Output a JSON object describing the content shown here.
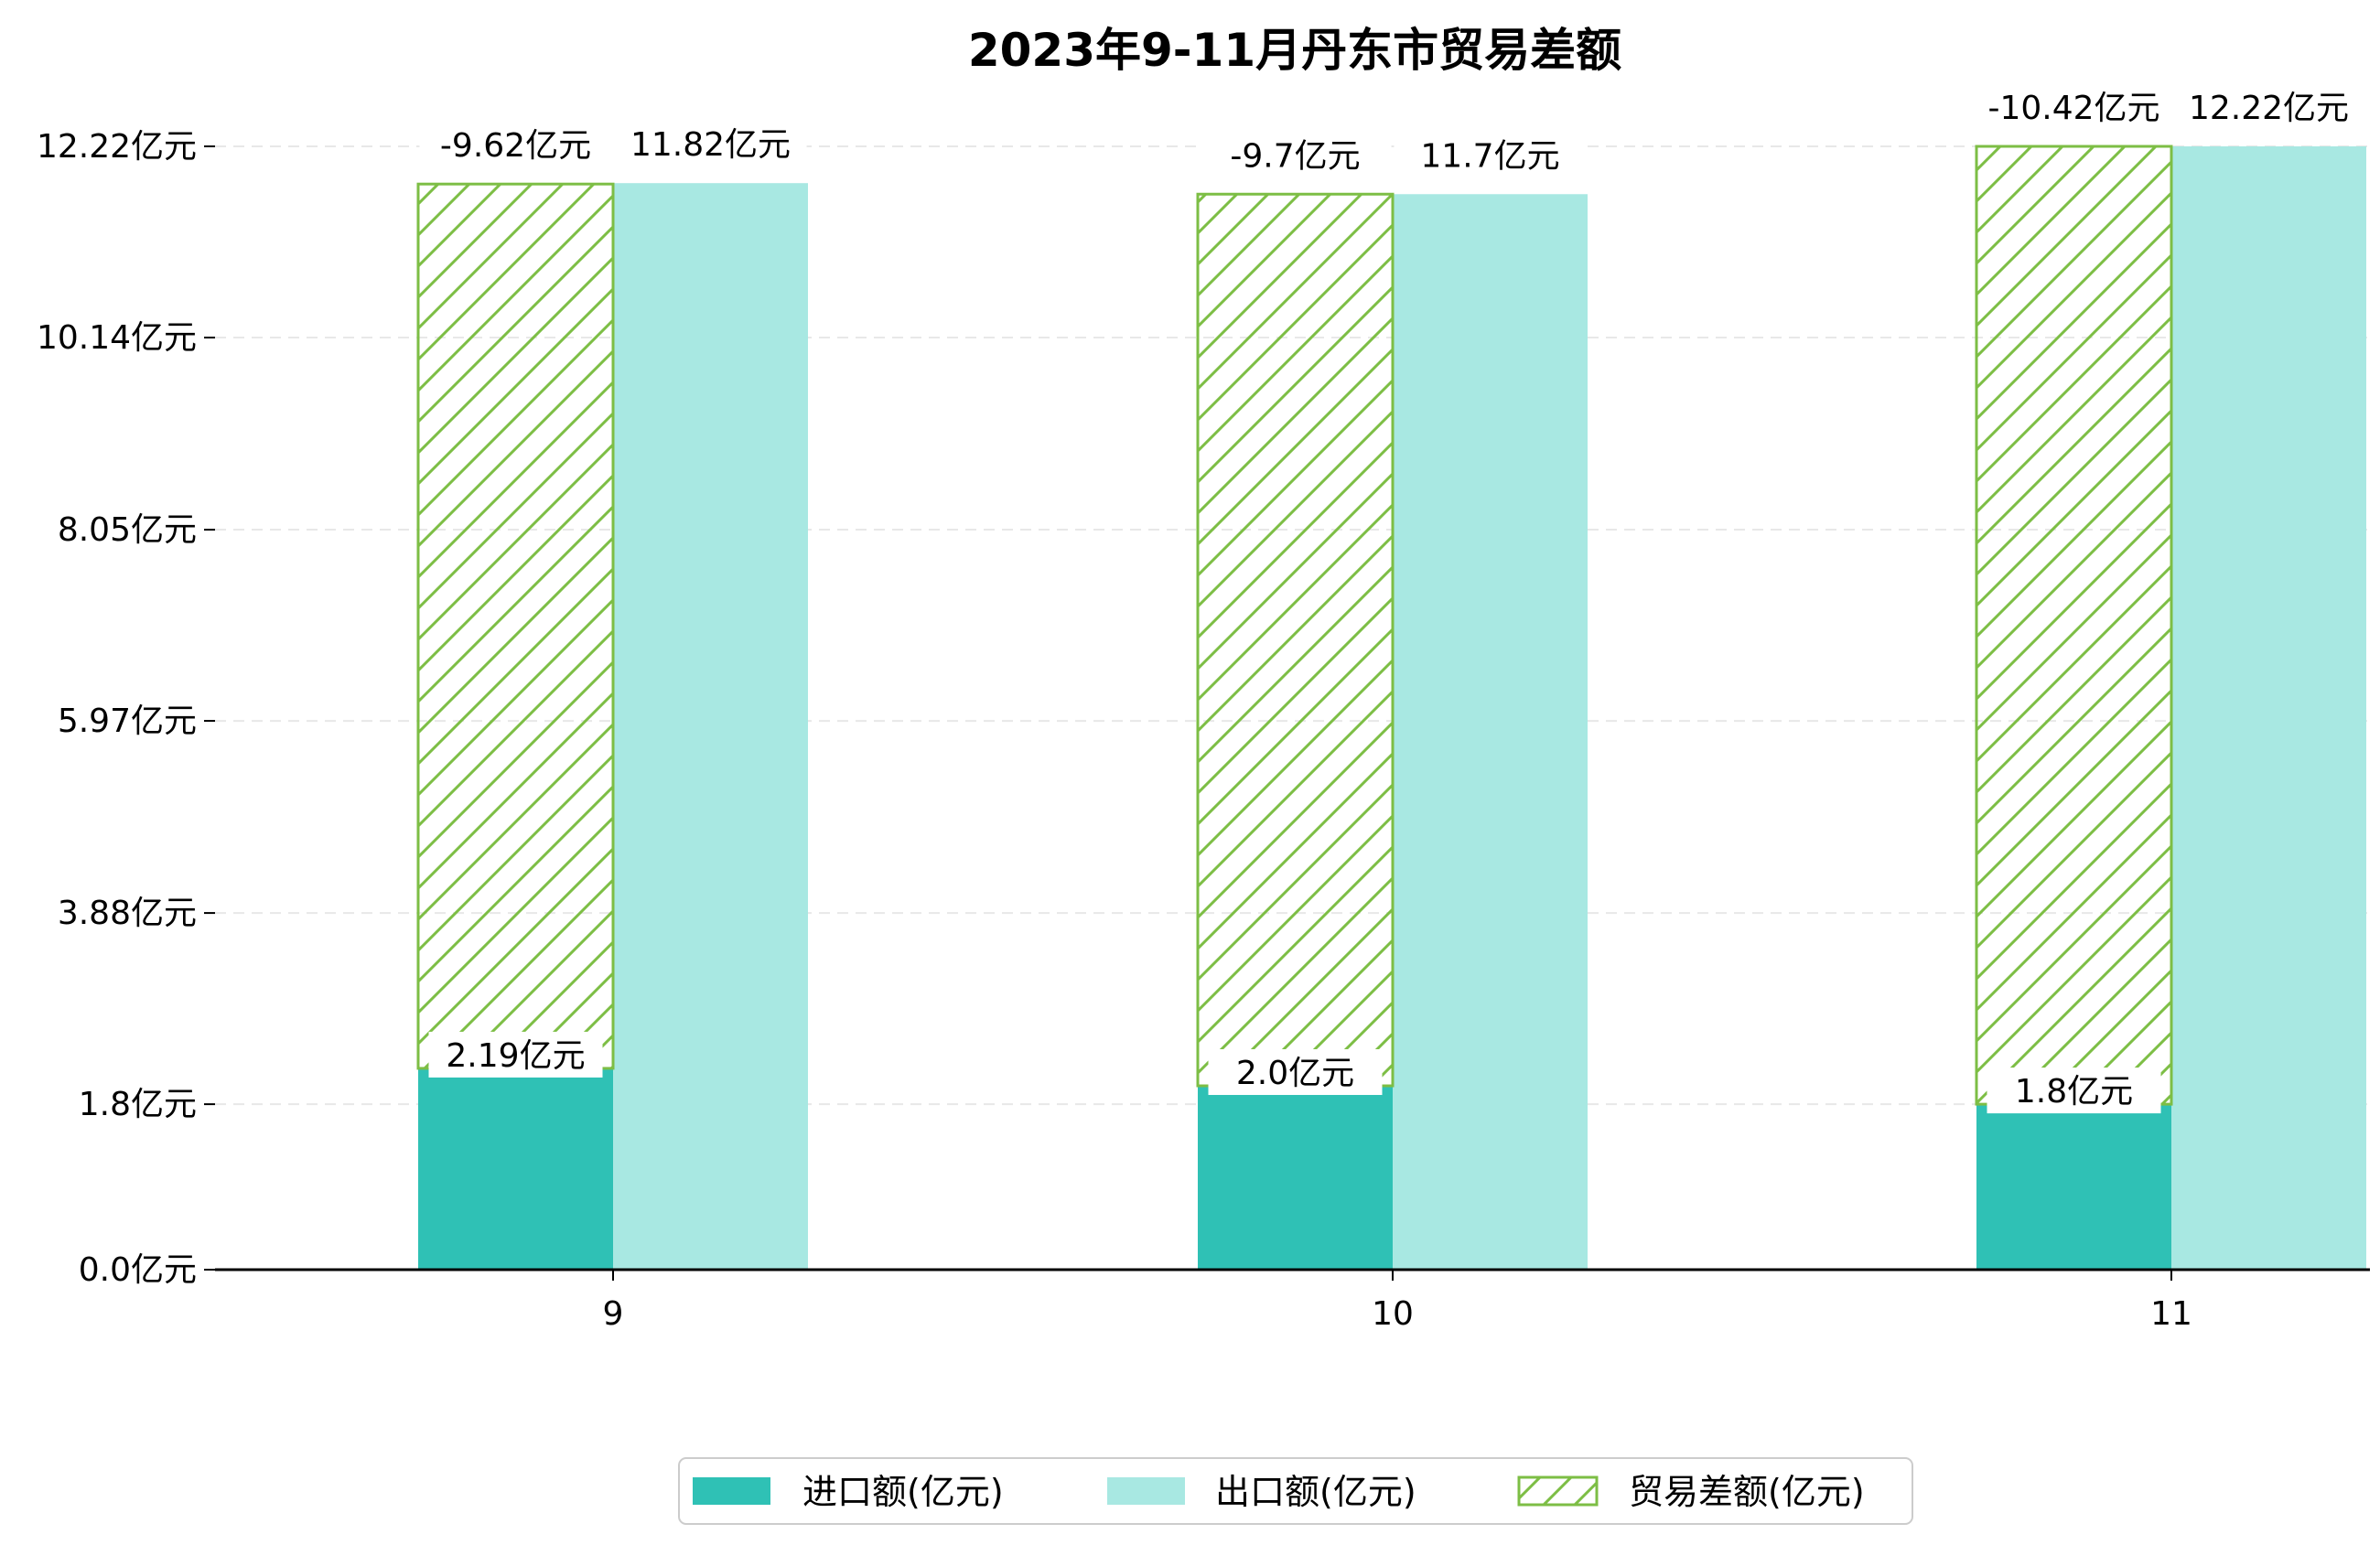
{
  "chart_data": {
    "type": "bar",
    "title": "2023年9-11月丹东市贸易差额",
    "xlabel": "",
    "ylabel": "",
    "categories": [
      "9",
      "10",
      "11"
    ],
    "series": [
      {
        "name": "进口额(亿元)",
        "values": [
          2.19,
          2.0,
          1.8
        ],
        "labels": [
          "2.19亿元",
          "2.0亿元",
          "1.8亿元"
        ],
        "color": "#2fc1b5"
      },
      {
        "name": "出口额(亿元)",
        "values": [
          11.82,
          11.7,
          12.22
        ],
        "labels": [
          "11.82亿元",
          "11.7亿元",
          "12.22亿元"
        ],
        "color": "#a8e8e2"
      },
      {
        "name": "贸易差额(亿元)",
        "values": [
          -9.62,
          -9.7,
          -10.42
        ],
        "labels": [
          "-9.62亿元",
          "-9.7亿元",
          "-10.42亿元"
        ],
        "color": "#7dbe45",
        "style": "hatched"
      }
    ],
    "yticks": [
      0.0,
      1.8,
      3.88,
      5.97,
      8.05,
      10.14,
      12.22
    ],
    "ytick_labels": [
      "0.0亿元",
      "1.8亿元",
      "3.88亿元",
      "5.97亿元",
      "8.05亿元",
      "10.14亿元",
      "12.22亿元"
    ],
    "ylim": [
      0,
      12.22
    ],
    "grid": "horizontal-dashed",
    "legend_position": "bottom-center"
  }
}
